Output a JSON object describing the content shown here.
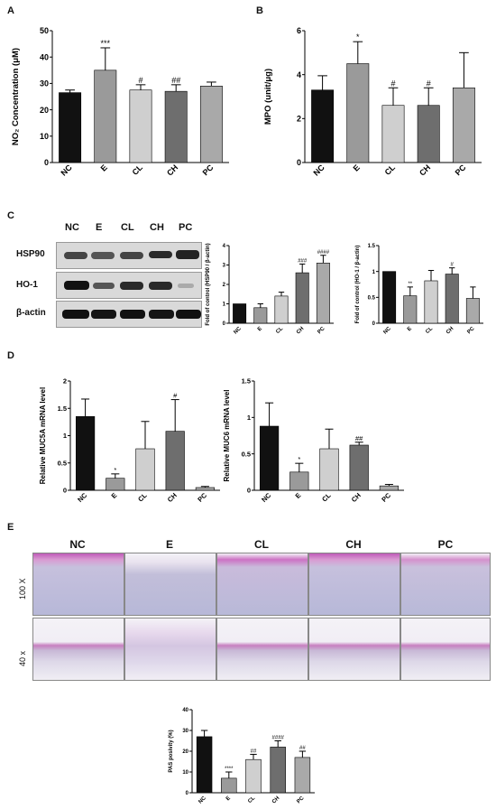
{
  "panels": {
    "A": {
      "label": "A",
      "ylabel": "NO₂ Concentration (μM)"
    },
    "B": {
      "label": "B",
      "ylabel": "MPO (unit/μg)"
    },
    "C": {
      "label": "C",
      "blot_rows": [
        "HSP90",
        "HO-1",
        "β-actin"
      ],
      "lanes": [
        "NC",
        "E",
        "CL",
        "CH",
        "PC"
      ]
    },
    "D": {
      "label": "D"
    },
    "E": {
      "label": "E",
      "columns": [
        "NC",
        "E",
        "CL",
        "CH",
        "PC"
      ],
      "rows": [
        "100 X",
        "40 x"
      ]
    }
  },
  "chart_data": [
    {
      "id": "A",
      "type": "bar",
      "categories": [
        "NC",
        "E",
        "CL",
        "CH",
        "PC"
      ],
      "values": [
        26.5,
        35,
        27.5,
        27,
        29
      ],
      "errors": [
        1,
        8.5,
        2,
        2.5,
        1.5
      ],
      "sig": [
        "",
        "***",
        "#",
        "##",
        ""
      ],
      "title": "",
      "xlabel": "",
      "ylabel": "NO₂ Concentration (μM)",
      "ylim": [
        0,
        50
      ],
      "yticks": [
        0,
        10,
        20,
        30,
        40,
        50
      ],
      "colors": [
        "#111111",
        "#9a9a9a",
        "#cfcfcf",
        "#6e6e6e",
        "#a9a9a9"
      ]
    },
    {
      "id": "B",
      "type": "bar",
      "categories": [
        "NC",
        "E",
        "CL",
        "CH",
        "PC"
      ],
      "values": [
        3.3,
        4.5,
        2.6,
        2.6,
        3.4
      ],
      "errors": [
        0.65,
        1.0,
        0.8,
        0.8,
        1.6
      ],
      "sig": [
        "",
        "*",
        "#",
        "#",
        ""
      ],
      "title": "",
      "xlabel": "",
      "ylabel": "MPO (unit/μg)",
      "ylim": [
        0,
        6
      ],
      "yticks": [
        0,
        2,
        4,
        6
      ],
      "colors": [
        "#111111",
        "#9a9a9a",
        "#cfcfcf",
        "#6e6e6e",
        "#a9a9a9"
      ]
    },
    {
      "id": "C1",
      "type": "bar",
      "categories": [
        "NC",
        "E",
        "CL",
        "CH",
        "PC"
      ],
      "values": [
        1.0,
        0.8,
        1.4,
        2.6,
        3.1
      ],
      "errors": [
        0,
        0.2,
        0.2,
        0.45,
        0.4
      ],
      "sig": [
        "",
        "",
        "",
        "###",
        "####"
      ],
      "title": "",
      "xlabel": "",
      "ylabel": "Fold of control (HSP90 / β-actin)",
      "ylim": [
        0,
        4
      ],
      "yticks": [
        0,
        1,
        2,
        3,
        4
      ],
      "colors": [
        "#111111",
        "#9a9a9a",
        "#cfcfcf",
        "#6e6e6e",
        "#a9a9a9"
      ]
    },
    {
      "id": "C2",
      "type": "bar",
      "categories": [
        "NC",
        "E",
        "CL",
        "CH",
        "PC"
      ],
      "values": [
        1.0,
        0.53,
        0.82,
        0.95,
        0.48
      ],
      "errors": [
        0,
        0.17,
        0.2,
        0.12,
        0.22
      ],
      "sig": [
        "",
        "**",
        "",
        "#",
        ""
      ],
      "title": "",
      "xlabel": "",
      "ylabel": "Fold of control (HO-1 / β-actin)",
      "ylim": [
        0,
        1.5
      ],
      "yticks": [
        0,
        0.5,
        1.0,
        1.5
      ],
      "colors": [
        "#111111",
        "#9a9a9a",
        "#cfcfcf",
        "#6e6e6e",
        "#a9a9a9"
      ]
    },
    {
      "id": "D1",
      "type": "bar",
      "categories": [
        "NC",
        "E",
        "CL",
        "CH",
        "PC"
      ],
      "values": [
        1.35,
        0.22,
        0.76,
        1.08,
        0.05
      ],
      "errors": [
        0.32,
        0.08,
        0.5,
        0.58,
        0.02
      ],
      "sig": [
        "",
        "*",
        "",
        "#",
        ""
      ],
      "title": "",
      "xlabel": "",
      "ylabel": "Relative MUC5A mRNA level",
      "ylim": [
        0,
        2.0
      ],
      "yticks": [
        0,
        0.5,
        1.0,
        1.5,
        2.0
      ],
      "colors": [
        "#111111",
        "#9a9a9a",
        "#cfcfcf",
        "#6e6e6e",
        "#a9a9a9"
      ]
    },
    {
      "id": "D2",
      "type": "bar",
      "categories": [
        "NC",
        "E",
        "CL",
        "CH",
        "PC"
      ],
      "values": [
        0.88,
        0.25,
        0.57,
        0.62,
        0.06
      ],
      "errors": [
        0.32,
        0.12,
        0.27,
        0.04,
        0.02
      ],
      "sig": [
        "",
        "*",
        "",
        "##",
        ""
      ],
      "title": "",
      "xlabel": "",
      "ylabel": "Relative MUC6 mRNA level",
      "ylim": [
        0,
        1.5
      ],
      "yticks": [
        0,
        0.5,
        1.0,
        1.5
      ],
      "colors": [
        "#111111",
        "#9a9a9a",
        "#cfcfcf",
        "#6e6e6e",
        "#a9a9a9"
      ]
    },
    {
      "id": "E1",
      "type": "bar",
      "categories": [
        "NC",
        "E",
        "CL",
        "CH",
        "PC"
      ],
      "values": [
        27,
        7,
        16,
        22,
        17
      ],
      "errors": [
        3,
        3,
        2.5,
        3,
        3
      ],
      "sig": [
        "",
        "****",
        "##",
        "####",
        "##"
      ],
      "title": "",
      "xlabel": "",
      "ylabel": "PAS posivity (%)",
      "ylim": [
        0,
        40
      ],
      "yticks": [
        0,
        10,
        20,
        30,
        40
      ],
      "colors": [
        "#111111",
        "#9a9a9a",
        "#cfcfcf",
        "#6e6e6e",
        "#a9a9a9"
      ]
    }
  ]
}
